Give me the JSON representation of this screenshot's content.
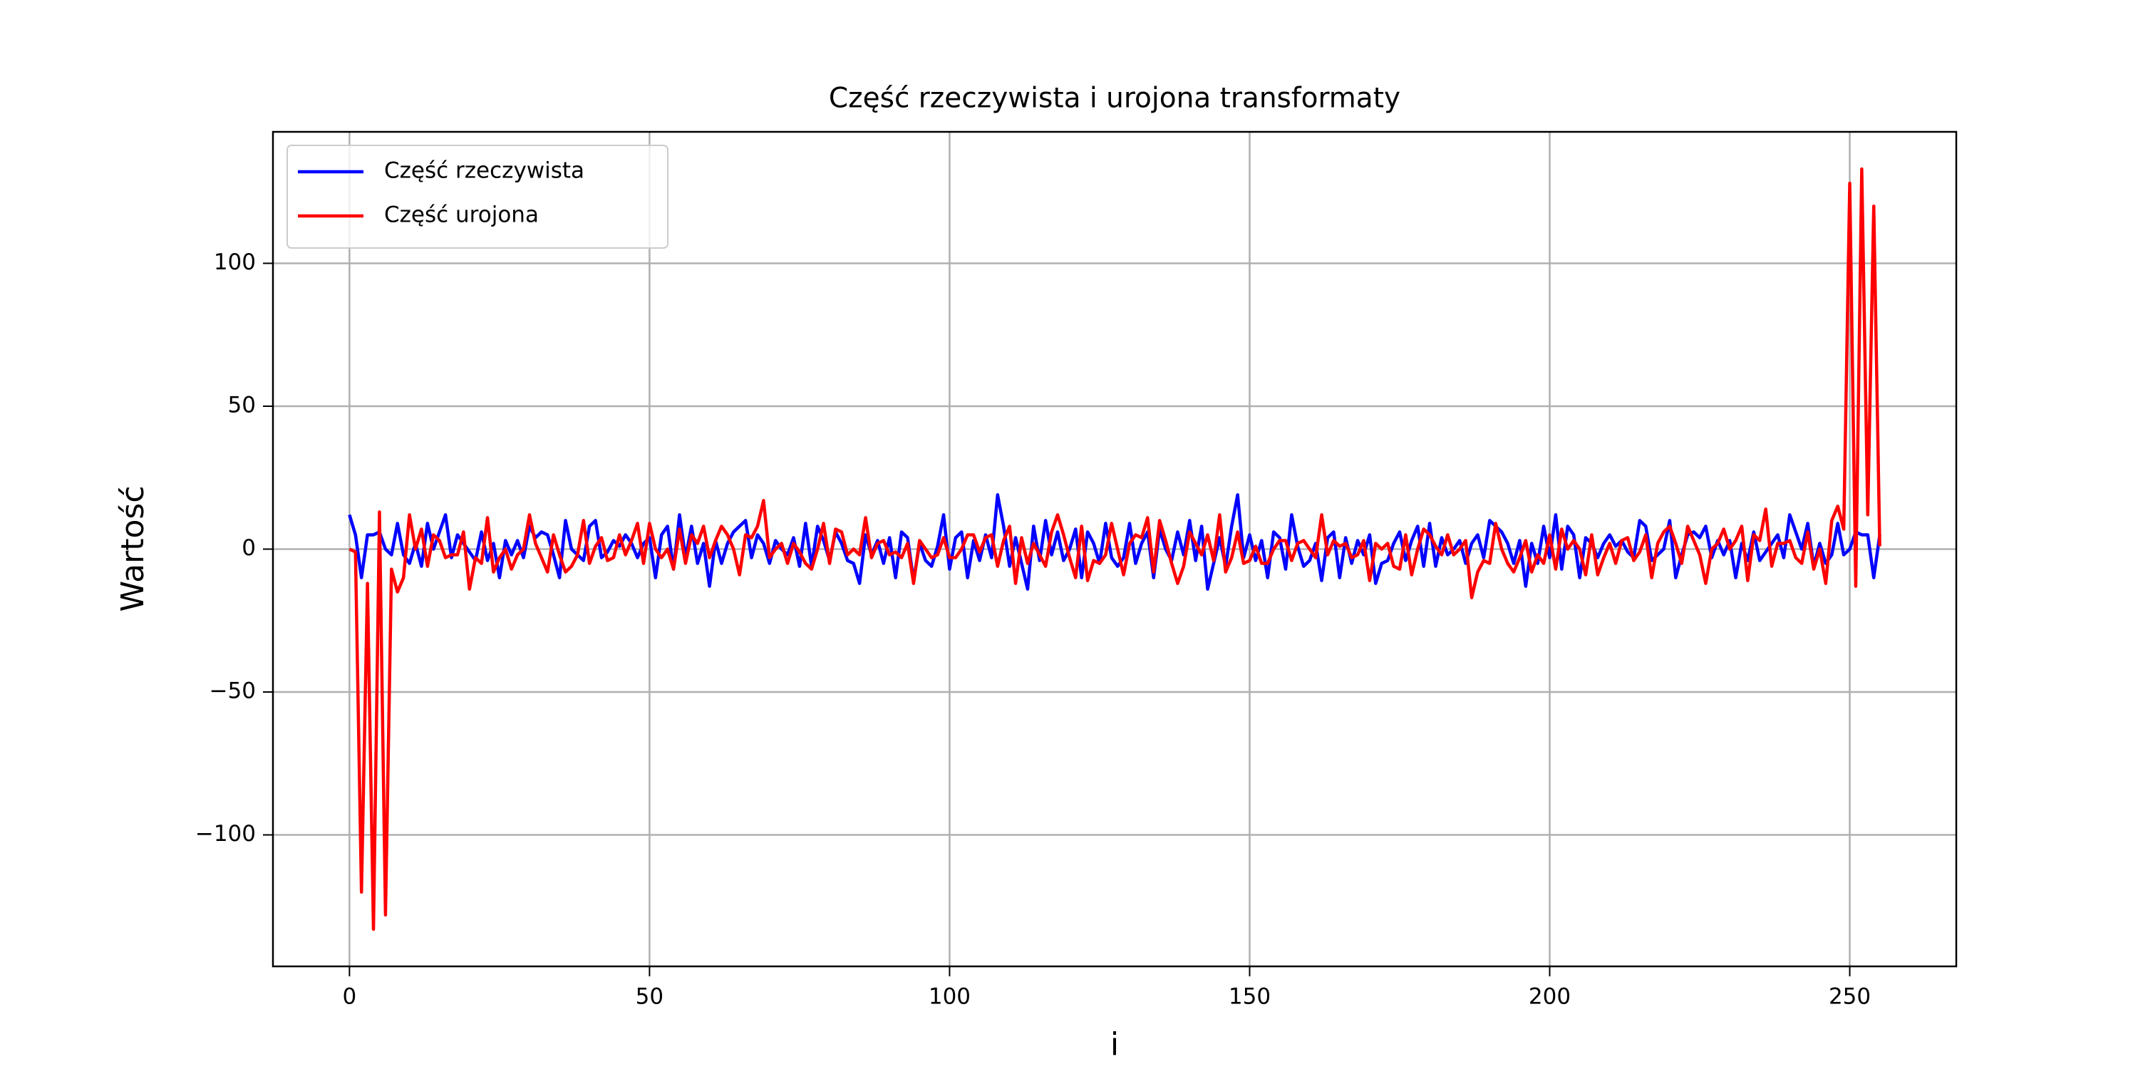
{
  "chart_data": {
    "type": "line",
    "title": "Część rzeczywista i urojona transformaty",
    "xlabel": "i",
    "ylabel": "Wartość",
    "xlim": [
      -12.75,
      267.75
    ],
    "xticks": [
      0,
      50,
      100,
      150,
      200,
      250
    ],
    "ylim": [
      -146,
      146
    ],
    "yticks": [
      {
        "value": -100,
        "label": "−100"
      },
      {
        "value": -50,
        "label": "−50"
      },
      0,
      50,
      100
    ],
    "grid": true,
    "legend": "upper left",
    "x": [
      0,
      1,
      2,
      3,
      4,
      5,
      6,
      7,
      8,
      9,
      10,
      11,
      12,
      13,
      14,
      15,
      16,
      17,
      18,
      19,
      20,
      21,
      22,
      23,
      24,
      25,
      26,
      27,
      28,
      29,
      30,
      31,
      32,
      33,
      34,
      35,
      36,
      37,
      38,
      39,
      40,
      41,
      42,
      43,
      44,
      45,
      46,
      47,
      48,
      49,
      50,
      51,
      52,
      53,
      54,
      55,
      56,
      57,
      58,
      59,
      60,
      61,
      62,
      63,
      64,
      65,
      66,
      67,
      68,
      69,
      70,
      71,
      72,
      73,
      74,
      75,
      76,
      77,
      78,
      79,
      80,
      81,
      82,
      83,
      84,
      85,
      86,
      87,
      88,
      89,
      90,
      91,
      92,
      93,
      94,
      95,
      96,
      97,
      98,
      99,
      100,
      101,
      102,
      103,
      104,
      105,
      106,
      107,
      108,
      109,
      110,
      111,
      112,
      113,
      114,
      115,
      116,
      117,
      118,
      119,
      120,
      121,
      122,
      123,
      124,
      125,
      126,
      127,
      128,
      129,
      130,
      131,
      132,
      133,
      134,
      135,
      136,
      137,
      138,
      139,
      140,
      141,
      142,
      143,
      144,
      145,
      146,
      147,
      148,
      149,
      150,
      151,
      152,
      153,
      154,
      155,
      156,
      157,
      158,
      159,
      160,
      161,
      162,
      163,
      164,
      165,
      166,
      167,
      168,
      169,
      170,
      171,
      172,
      173,
      174,
      175,
      176,
      177,
      178,
      179,
      180,
      181,
      182,
      183,
      184,
      185,
      186,
      187,
      188,
      189,
      190,
      191,
      192,
      193,
      194,
      195,
      196,
      197,
      198,
      199,
      200,
      201,
      202,
      203,
      204,
      205,
      206,
      207,
      208,
      209,
      210,
      211,
      212,
      213,
      214,
      215,
      216,
      217,
      218,
      219,
      220,
      221,
      222,
      223,
      224,
      225,
      226,
      227,
      228,
      229,
      230,
      231,
      232,
      233,
      234,
      235,
      236,
      237,
      238,
      239,
      240,
      241,
      242,
      243,
      244,
      245,
      246,
      247,
      248,
      249,
      250,
      251,
      252,
      253,
      254,
      255
    ],
    "series": [
      {
        "name": "Część rzeczywista",
        "color": "#0000ff",
        "values": [
          12,
          5,
          -10,
          5,
          5,
          6,
          0,
          -2,
          9,
          -2,
          -5,
          2,
          -6,
          9,
          0,
          6,
          12,
          -3,
          5,
          2,
          -1,
          -4,
          6,
          -4,
          2,
          -10,
          3,
          -2,
          3,
          -3,
          8,
          4,
          6,
          5,
          -2,
          -10,
          10,
          0,
          -2,
          -4,
          8,
          10,
          -3,
          -1,
          3,
          1,
          5,
          2,
          -3,
          2,
          4,
          -10,
          5,
          8,
          -7,
          12,
          -3,
          8,
          -5,
          2,
          -13,
          3,
          -5,
          2,
          6,
          8,
          10,
          -3,
          5,
          2,
          -5,
          3,
          0,
          -2,
          4,
          -6,
          9,
          -6,
          8,
          3,
          -4,
          6,
          2,
          -4,
          -5,
          -12,
          5,
          -2,
          3,
          -5,
          4,
          -10,
          6,
          4,
          -11,
          2,
          -4,
          -6,
          1,
          12,
          -7,
          4,
          6,
          -10,
          3,
          -4,
          5,
          -3,
          19,
          8,
          -6,
          4,
          -5,
          -14,
          8,
          -4,
          10,
          -2,
          6,
          -4,
          0,
          7,
          -10,
          6,
          2,
          -5,
          9,
          -3,
          -6,
          -3,
          9,
          -5,
          2,
          6,
          -10,
          7,
          0,
          -4,
          6,
          -2,
          10,
          -4,
          8,
          -14,
          -5,
          4,
          -6,
          8,
          19,
          -3,
          5,
          -4,
          3,
          -10,
          6,
          4,
          -7,
          12,
          1,
          -6,
          -4,
          2,
          -11,
          4,
          6,
          -10,
          4,
          -5,
          3,
          -2,
          5,
          -12,
          -5,
          -4,
          2,
          6,
          -4,
          3,
          8,
          -6,
          9,
          -6,
          4,
          -2,
          0,
          3,
          -5,
          2,
          5,
          -3,
          10,
          8,
          6,
          2,
          -5,
          3,
          -13,
          2,
          -5,
          8,
          -3,
          12,
          -7,
          8,
          5,
          -10,
          4,
          2,
          -3,
          2,
          5,
          1,
          3,
          -1,
          -3,
          10,
          8,
          -4,
          -2,
          0,
          10,
          -10,
          -2,
          5,
          6,
          4,
          8,
          -3,
          3,
          -2,
          3,
          -10,
          2,
          -4,
          6,
          -4,
          -1,
          2,
          5,
          -3,
          12,
          6,
          0,
          9,
          -6,
          2,
          -5,
          -2,
          9,
          -2,
          0,
          6,
          5,
          5,
          -10,
          5
        ]
      },
      {
        "name": "Część urojona",
        "color": "#ff0000",
        "values": [
          0,
          -1,
          -120,
          -12,
          -133,
          13,
          -128,
          -7,
          -15,
          -10,
          12,
          0,
          7,
          -6,
          5,
          3,
          -3,
          -2,
          -2,
          6,
          -14,
          -3,
          -5,
          11,
          -8,
          -3,
          0,
          -7,
          -2,
          0,
          12,
          2,
          -3,
          -8,
          5,
          -2,
          -8,
          -6,
          -2,
          10,
          -5,
          1,
          4,
          -4,
          -3,
          5,
          -2,
          3,
          9,
          -5,
          9,
          0,
          -3,
          0,
          -7,
          7,
          -5,
          5,
          2,
          8,
          -3,
          3,
          8,
          5,
          0,
          -9,
          5,
          4,
          8,
          17,
          -3,
          0,
          2,
          -5,
          2,
          -1,
          -5,
          -7,
          0,
          9,
          -5,
          7,
          6,
          -2,
          0,
          -2,
          11,
          -3,
          2,
          3,
          -2,
          -1,
          -3,
          2,
          -12,
          3,
          0,
          -3,
          -2,
          4,
          -3,
          -3,
          0,
          5,
          5,
          -1,
          4,
          5,
          -6,
          3,
          8,
          -12,
          4,
          -5,
          2,
          -2,
          -6,
          6,
          12,
          5,
          -3,
          -10,
          8,
          -11,
          -4,
          -5,
          -2,
          9,
          0,
          -9,
          2,
          5,
          4,
          11,
          -8,
          10,
          3,
          -5,
          -12,
          -6,
          6,
          2,
          -2,
          5,
          -4,
          12,
          -8,
          -3,
          6,
          -5,
          -4,
          1,
          -5,
          -5,
          0,
          3,
          3,
          -4,
          2,
          3,
          0,
          -3,
          12,
          -2,
          3,
          1,
          2,
          -3,
          -2,
          3,
          -11,
          2,
          0,
          2,
          -6,
          -7,
          5,
          -9,
          0,
          7,
          5,
          1,
          -2,
          5,
          -2,
          0,
          3,
          -17,
          -8,
          -4,
          -5,
          9,
          0,
          -5,
          -8,
          -3,
          3,
          -8,
          -2,
          -5,
          5,
          -7,
          7,
          0,
          3,
          0,
          -9,
          5,
          -9,
          -3,
          2,
          -5,
          3,
          4,
          -4,
          -1,
          5,
          -10,
          2,
          6,
          8,
          2,
          -5,
          8,
          3,
          -2,
          -12,
          0,
          2,
          7,
          0,
          3,
          8,
          -11,
          5,
          3,
          14,
          -6,
          2,
          2,
          3,
          -3,
          -5,
          6,
          -7,
          0,
          -12,
          10,
          15,
          7,
          128,
          -13,
          133,
          12,
          120,
          1
        ]
      }
    ]
  }
}
